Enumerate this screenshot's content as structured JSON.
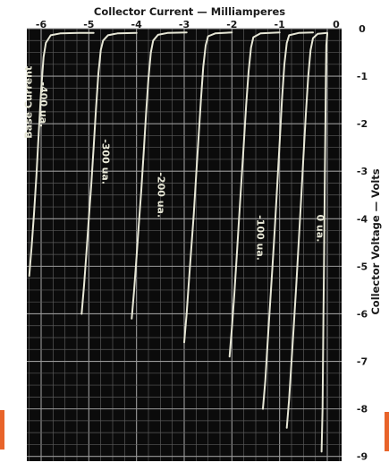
{
  "chart_data": {
    "type": "line",
    "title": "",
    "xlabel": "Collector Current — Milliamperes",
    "ylabel": "Collector Voltage — Volts",
    "x_ticks": [
      "-6",
      "-5",
      "-4",
      "-3",
      "-2",
      "-1",
      "0"
    ],
    "y_ticks": [
      "0",
      "-1",
      "-2",
      "-3",
      "-4",
      "-5",
      "-6",
      "-7",
      "-8",
      "-9"
    ],
    "xlim": [
      -6.3,
      0.3
    ],
    "ylim": [
      0,
      -9.1
    ],
    "grid": true,
    "background": "#0b0b0b",
    "line_color": "#e7e7d6",
    "axis_text_color": "#1a1a1a",
    "accent_color": "#e8642a",
    "series_label_prefix": "Base Current",
    "series": [
      {
        "name": "-400 ua",
        "label": "-400 ua.",
        "points": [
          [
            -6.25,
            -5.2
          ],
          [
            -6.2,
            -4.6
          ],
          [
            -6.15,
            -3.9
          ],
          [
            -6.1,
            -3.1
          ],
          [
            -6.05,
            -2.2
          ],
          [
            -6.0,
            -1.3
          ],
          [
            -5.95,
            -0.6
          ],
          [
            -5.9,
            -0.3
          ],
          [
            -5.8,
            -0.14
          ],
          [
            -5.6,
            -0.1
          ],
          [
            -5.2,
            -0.09
          ],
          [
            -4.9,
            -0.09
          ]
        ]
      },
      {
        "name": "-300 ua",
        "label": "-300 ua.",
        "points": [
          [
            -5.15,
            -6.0
          ],
          [
            -5.1,
            -5.4
          ],
          [
            -5.05,
            -4.7
          ],
          [
            -5.0,
            -4.0
          ],
          [
            -4.95,
            -3.3
          ],
          [
            -4.9,
            -2.5
          ],
          [
            -4.85,
            -1.7
          ],
          [
            -4.8,
            -0.95
          ],
          [
            -4.75,
            -0.45
          ],
          [
            -4.7,
            -0.25
          ],
          [
            -4.6,
            -0.14
          ],
          [
            -4.4,
            -0.1
          ],
          [
            -4.0,
            -0.09
          ]
        ]
      },
      {
        "name": "-200 ua",
        "label": "-200 ua.",
        "points": [
          [
            -4.1,
            -6.1
          ],
          [
            -4.05,
            -5.5
          ],
          [
            -4.0,
            -4.8
          ],
          [
            -3.95,
            -4.1
          ],
          [
            -3.9,
            -3.4
          ],
          [
            -3.85,
            -2.6
          ],
          [
            -3.8,
            -1.8
          ],
          [
            -3.75,
            -1.05
          ],
          [
            -3.7,
            -0.5
          ],
          [
            -3.65,
            -0.25
          ],
          [
            -3.55,
            -0.13
          ],
          [
            -3.35,
            -0.09
          ],
          [
            -2.95,
            -0.08
          ]
        ]
      },
      {
        "name": "-100 ua",
        "label": "-100 ua.",
        "points": [
          [
            -2.05,
            -6.9
          ],
          [
            -2.0,
            -6.3
          ],
          [
            -1.95,
            -5.6
          ],
          [
            -1.9,
            -4.8
          ],
          [
            -1.85,
            -4.0
          ],
          [
            -1.8,
            -3.2
          ],
          [
            -1.75,
            -2.4
          ],
          [
            -1.7,
            -1.6
          ],
          [
            -1.65,
            -0.9
          ],
          [
            -1.6,
            -0.4
          ],
          [
            -1.55,
            -0.18
          ],
          [
            -1.4,
            -0.1
          ],
          [
            -1.0,
            -0.08
          ]
        ]
      },
      {
        "name": "0 ua",
        "label": "0 ua.",
        "points": [
          [
            -0.85,
            -8.4
          ],
          [
            -0.8,
            -7.8
          ],
          [
            -0.75,
            -7.0
          ],
          [
            -0.7,
            -6.2
          ],
          [
            -0.65,
            -5.4
          ],
          [
            -0.6,
            -4.5
          ],
          [
            -0.55,
            -3.6
          ],
          [
            -0.5,
            -2.7
          ],
          [
            -0.45,
            -1.8
          ],
          [
            -0.4,
            -1.0
          ],
          [
            -0.35,
            -0.45
          ],
          [
            -0.3,
            -0.2
          ],
          [
            -0.2,
            -0.11
          ],
          [
            0.0,
            -0.09
          ]
        ]
      },
      {
        "name": "curve-extra-a",
        "label": "",
        "points": [
          [
            -3.0,
            -6.6
          ],
          [
            -2.95,
            -6.0
          ],
          [
            -2.9,
            -5.3
          ],
          [
            -2.85,
            -4.6
          ],
          [
            -2.8,
            -3.9
          ],
          [
            -2.75,
            -3.1
          ],
          [
            -2.7,
            -2.3
          ],
          [
            -2.65,
            -1.5
          ],
          [
            -2.6,
            -0.8
          ],
          [
            -2.55,
            -0.35
          ],
          [
            -2.5,
            -0.16
          ],
          [
            -2.35,
            -0.1
          ],
          [
            -2.0,
            -0.08
          ]
        ]
      },
      {
        "name": "curve-extra-b",
        "label": "",
        "points": [
          [
            -1.35,
            -8.0
          ],
          [
            -1.3,
            -7.4
          ],
          [
            -1.25,
            -6.6
          ],
          [
            -1.2,
            -5.8
          ],
          [
            -1.15,
            -5.0
          ],
          [
            -1.1,
            -4.2
          ],
          [
            -1.05,
            -3.3
          ],
          [
            -1.0,
            -2.4
          ],
          [
            -0.95,
            -1.5
          ],
          [
            -0.9,
            -0.75
          ],
          [
            -0.85,
            -0.3
          ],
          [
            -0.8,
            -0.14
          ],
          [
            -0.6,
            -0.09
          ],
          [
            -0.3,
            -0.08
          ]
        ]
      },
      {
        "name": "curve-extra-c",
        "label": "",
        "points": [
          [
            -0.12,
            -8.9
          ],
          [
            -0.1,
            -8.0
          ],
          [
            -0.09,
            -7.0
          ],
          [
            -0.08,
            -6.0
          ],
          [
            -0.07,
            -5.0
          ],
          [
            -0.06,
            -4.0
          ],
          [
            -0.05,
            -3.0
          ],
          [
            -0.04,
            -2.0
          ],
          [
            -0.03,
            -1.0
          ],
          [
            -0.02,
            -0.35
          ],
          [
            0.0,
            -0.1
          ]
        ]
      }
    ]
  }
}
